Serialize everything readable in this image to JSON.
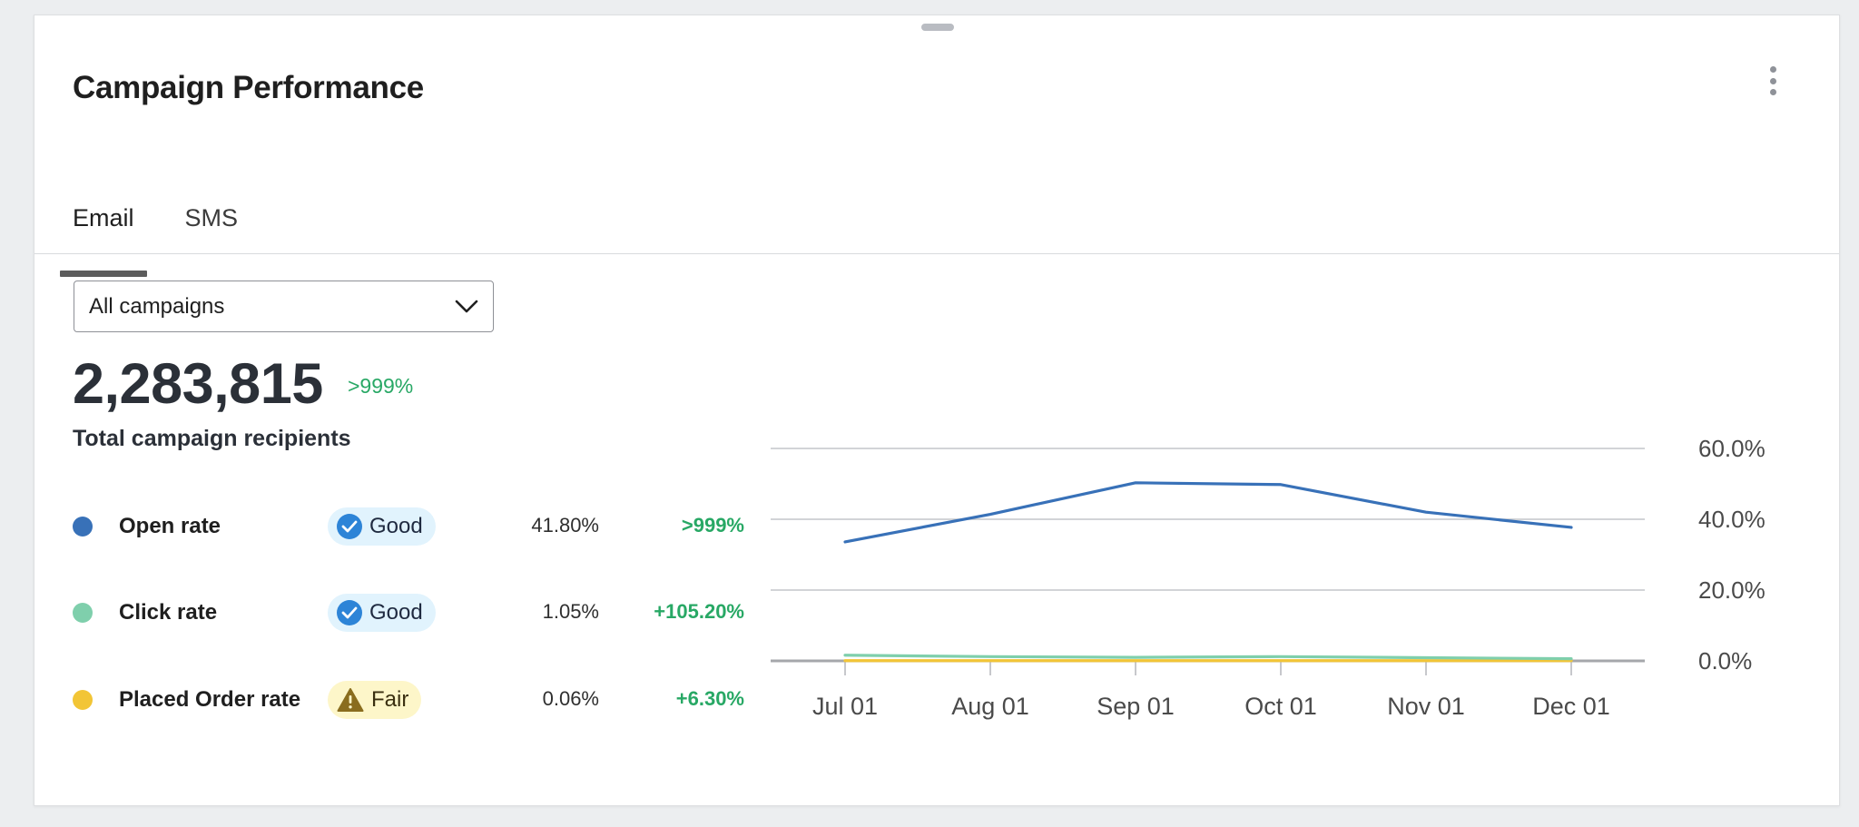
{
  "card": {
    "title": "Campaign Performance"
  },
  "tabs": [
    {
      "label": "Email",
      "active": true
    },
    {
      "label": "SMS",
      "active": false
    }
  ],
  "filter": {
    "selected": "All campaigns"
  },
  "summary": {
    "total": "2,283,815",
    "change": ">999%",
    "label": "Total campaign recipients"
  },
  "metrics": [
    {
      "name": "Open rate",
      "color": "#3871b8",
      "badge": "Good",
      "status": "good",
      "value": "41.80%",
      "change": ">999%"
    },
    {
      "name": "Click rate",
      "color": "#7fcfac",
      "badge": "Good",
      "status": "good",
      "value": "1.05%",
      "change": "+105.20%"
    },
    {
      "name": "Placed Order rate",
      "color": "#f2c536",
      "badge": "Fair",
      "status": "fair",
      "value": "0.06%",
      "change": "+6.30%"
    }
  ],
  "colors": {
    "positive": "#28a865",
    "good_badge_bg": "#e1f3fd",
    "fair_badge_bg": "#fdf6c9",
    "check_icon": "#2d84d7",
    "warning_icon": "#8a6d1e"
  },
  "chart_data": {
    "type": "line",
    "x": [
      "Jul 01",
      "Aug 01",
      "Sep 01",
      "Oct 01",
      "Nov 01",
      "Dec 01"
    ],
    "series": [
      {
        "name": "Open rate",
        "color": "#3871b8",
        "values": [
          33.6,
          41.4,
          50.3,
          49.8,
          42.0,
          37.7
        ]
      },
      {
        "name": "Click rate",
        "color": "#7fcfac",
        "values": [
          1.6,
          1.2,
          1.0,
          1.2,
          0.9,
          0.6
        ]
      },
      {
        "name": "Placed Order rate",
        "color": "#f2c536",
        "values": [
          0.06,
          0.06,
          0.06,
          0.06,
          0.06,
          0.06
        ]
      }
    ],
    "ylim": [
      0,
      60
    ],
    "yticks": [
      "0.0%",
      "20.0%",
      "40.0%",
      "60.0%"
    ],
    "ytick_values": [
      0,
      20,
      40,
      60
    ],
    "y_axis_side": "right",
    "grid": true,
    "title": "",
    "xlabel": "",
    "ylabel": ""
  }
}
